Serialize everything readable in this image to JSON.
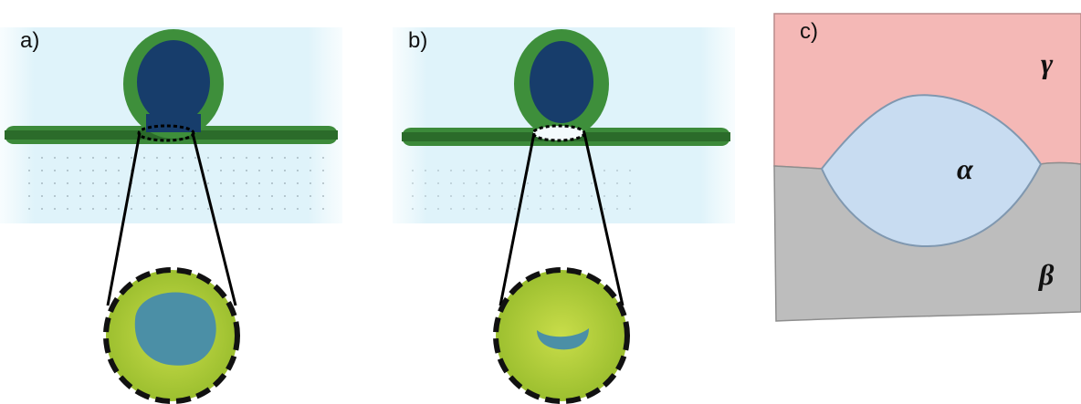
{
  "panels": [
    {
      "label": "a)"
    },
    {
      "label": "b)"
    },
    {
      "label": "c)",
      "phases": {
        "top": "γ",
        "middle": "α",
        "bottom": "β"
      }
    }
  ]
}
